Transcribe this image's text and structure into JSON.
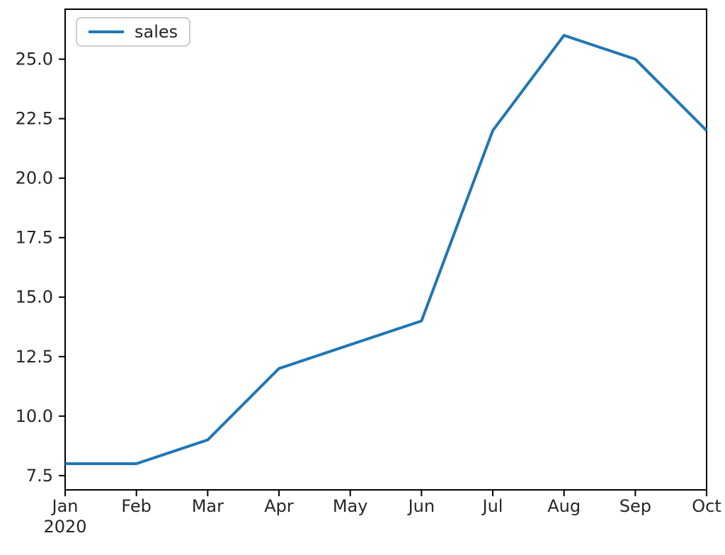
{
  "chart_data": {
    "type": "line",
    "title": "",
    "xlabel": "",
    "ylabel": "",
    "x": [
      "Jan 2020",
      "Feb",
      "Mar",
      "Apr",
      "May",
      "Jun",
      "Jul",
      "Aug",
      "Sep",
      "Oct"
    ],
    "x_tick_labels": [
      [
        "Jan",
        "2020"
      ],
      [
        "Feb"
      ],
      [
        "Mar"
      ],
      [
        "Apr"
      ],
      [
        "May"
      ],
      [
        "Jun"
      ],
      [
        "Jul"
      ],
      [
        "Aug"
      ],
      [
        "Sep"
      ],
      [
        "Oct"
      ]
    ],
    "series": [
      {
        "name": "sales",
        "color": "#1f77b4",
        "values": [
          8,
          8,
          9,
          12,
          13,
          14,
          22,
          26,
          25,
          22
        ]
      }
    ],
    "y_ticks": [
      7.5,
      10.0,
      12.5,
      15.0,
      17.5,
      20.0,
      22.5,
      25.0
    ],
    "y_tick_labels": [
      "7.5",
      "10.0",
      "12.5",
      "15.0",
      "17.5",
      "20.0",
      "22.5",
      "25.0"
    ],
    "ylim": [
      6.9,
      27.1
    ],
    "grid": false,
    "legend": {
      "position": "upper left",
      "entries": [
        "sales"
      ]
    }
  },
  "colors": {
    "line": "#1f77b4",
    "axis": "#000000",
    "tick_label": "#262626",
    "legend_border": "#cccccc",
    "background": "#ffffff"
  }
}
